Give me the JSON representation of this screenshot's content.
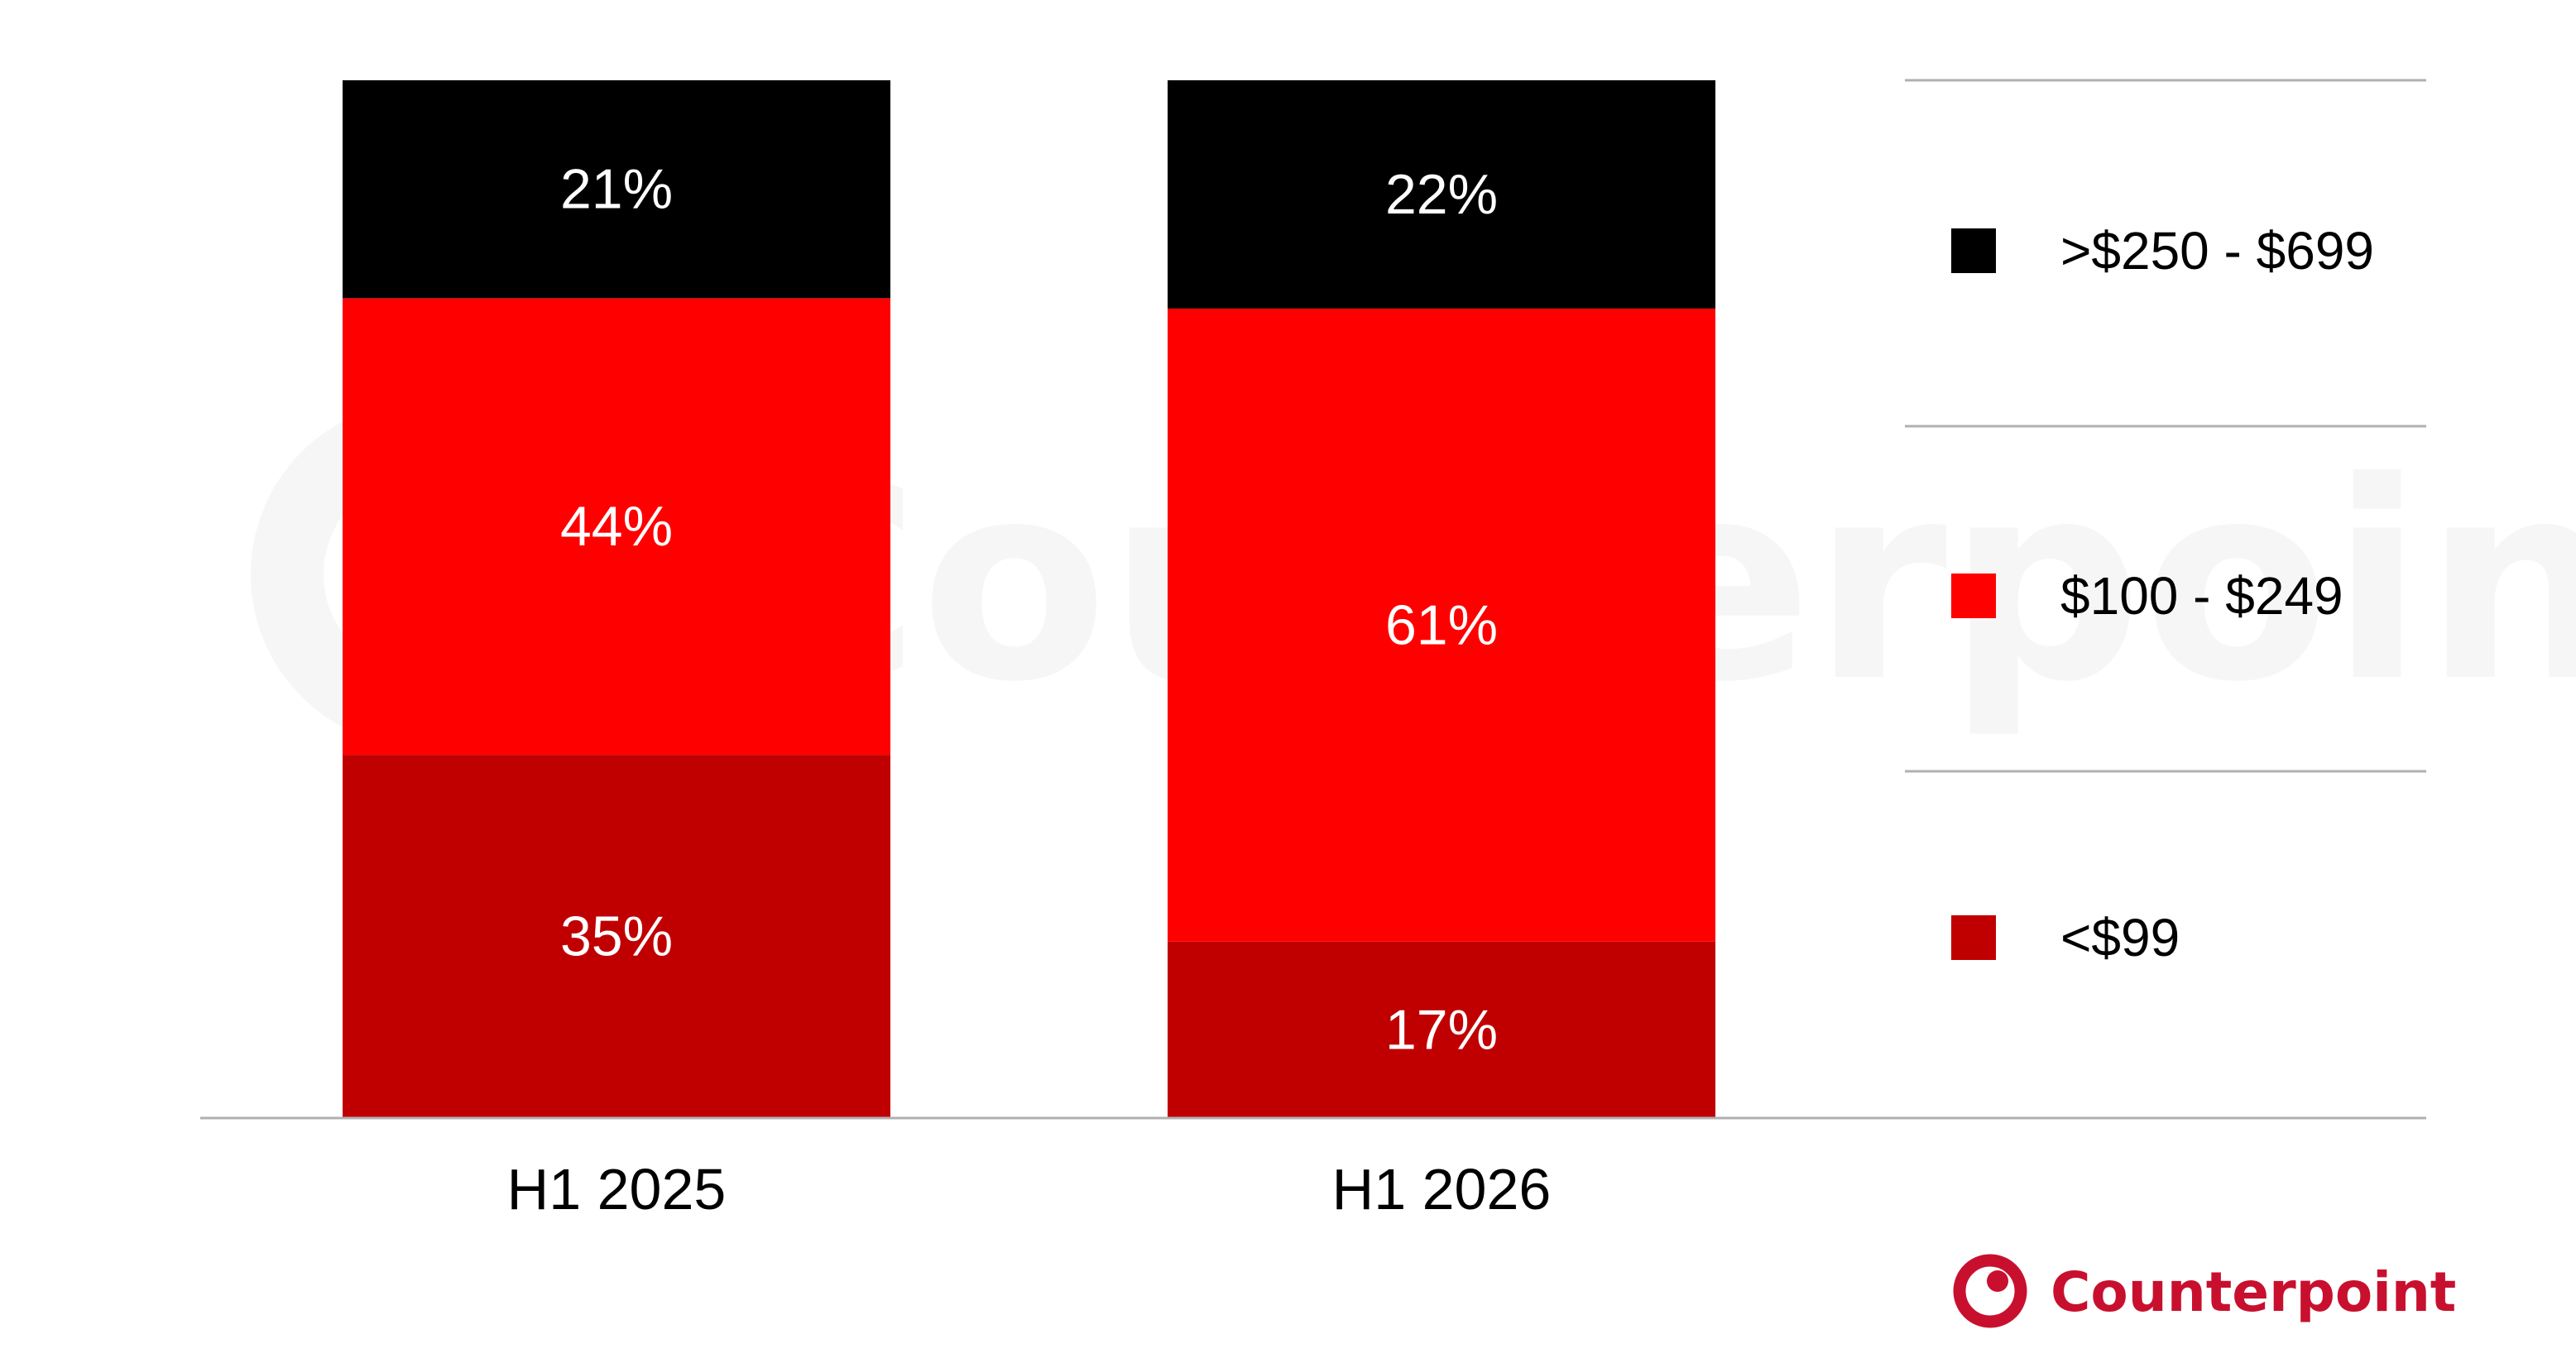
{
  "chart_data": {
    "type": "bar",
    "stacked": true,
    "normalized": true,
    "unit": "%",
    "categories": [
      "H1 2025",
      "H1 2026"
    ],
    "series": [
      {
        "name": "<$99",
        "values": [
          35,
          17
        ],
        "color": "#c00000"
      },
      {
        "name": "$100 - $249",
        "values": [
          44,
          61
        ],
        "color": "#ff0000"
      },
      {
        "name": ">$250 - $699",
        "values": [
          21,
          22
        ],
        "color": "#000000"
      }
    ],
    "data_labels": [
      [
        "35%",
        "17%"
      ],
      [
        "44%",
        "61%"
      ],
      [
        "21%",
        "22%"
      ]
    ],
    "title": "",
    "xlabel": "",
    "ylabel": "",
    "ylim": [
      0,
      100
    ],
    "grid": false,
    "legend": {
      "placement": "right",
      "order": [
        ">$250 - $699",
        "$100 - $249",
        "<$99"
      ],
      "dividers": true
    },
    "axis_line_color": "#b0b0b0",
    "data_label_color": "#ffffff"
  },
  "branding": {
    "logo_text": "Counterpoint",
    "logo_color": "#c8102e",
    "watermark_text": "Counterpoint",
    "watermark_color": "#f6f6f6"
  }
}
